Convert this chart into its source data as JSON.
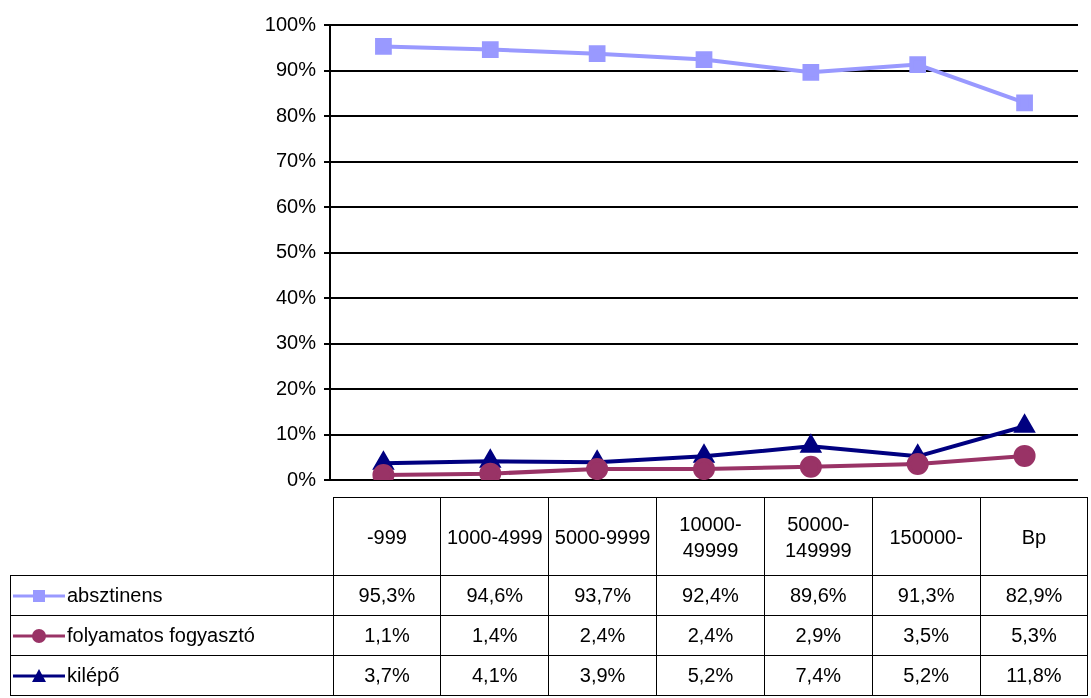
{
  "chart_data": {
    "type": "line",
    "categories": [
      "-999",
      "1000-4999",
      "5000-9999",
      "10000-49999",
      "50000-149999",
      "150000-",
      "Bp"
    ],
    "series": [
      {
        "name": "absztinens",
        "color": "#9999ff",
        "marker": "square",
        "values": [
          95.3,
          94.6,
          93.7,
          92.4,
          89.6,
          91.3,
          82.9
        ],
        "value_labels": [
          "95,3%",
          "94,6%",
          "93,7%",
          "92,4%",
          "89,6%",
          "91,3%",
          "82,9%"
        ]
      },
      {
        "name": "folyamatos fogyasztó",
        "color": "#993366",
        "marker": "circle",
        "values": [
          1.1,
          1.4,
          2.4,
          2.4,
          2.9,
          3.5,
          5.3
        ],
        "value_labels": [
          "1,1%",
          "1,4%",
          "2,4%",
          "2,4%",
          "2,9%",
          "3,5%",
          "5,3%"
        ]
      },
      {
        "name": "kilépő",
        "color": "#000080",
        "marker": "triangle",
        "values": [
          3.7,
          4.1,
          3.9,
          5.2,
          7.4,
          5.2,
          11.8
        ],
        "value_labels": [
          "3,7%",
          "4,1%",
          "3,9%",
          "5,2%",
          "7,4%",
          "5,2%",
          "11,8%"
        ]
      }
    ],
    "ylim": [
      0,
      100
    ],
    "yticks": [
      {
        "value": 0,
        "label": "0%"
      },
      {
        "value": 10,
        "label": "10%"
      },
      {
        "value": 20,
        "label": "20%"
      },
      {
        "value": 30,
        "label": "30%"
      },
      {
        "value": 40,
        "label": "40%"
      },
      {
        "value": 50,
        "label": "50%"
      },
      {
        "value": 60,
        "label": "60%"
      },
      {
        "value": 70,
        "label": "70%"
      },
      {
        "value": 80,
        "label": "80%"
      },
      {
        "value": 90,
        "label": "90%"
      },
      {
        "value": 100,
        "label": "100%"
      }
    ],
    "grid": "y",
    "legend": "bottom",
    "line_style": "solid"
  }
}
